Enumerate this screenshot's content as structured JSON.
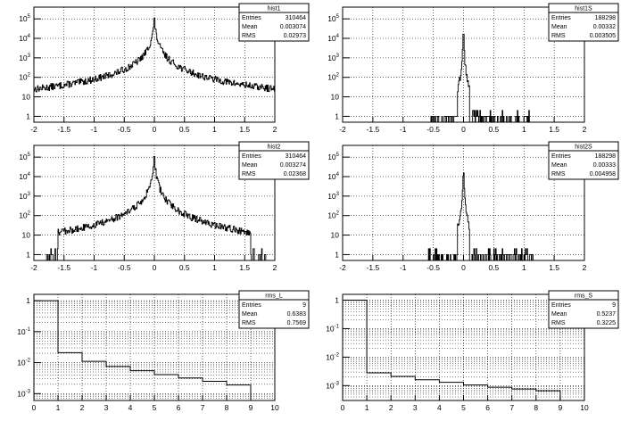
{
  "chart_data": [
    {
      "type": "histogram",
      "title": "hist1",
      "stats": [
        {
          "label": "Entries",
          "value": "310464"
        },
        {
          "label": "Mean",
          "value": "0.003074"
        },
        {
          "label": "RMS",
          "value": "0.02973"
        }
      ],
      "xlim": [
        -2,
        2
      ],
      "x_ticks": [
        "-2",
        "-1.5",
        "-1",
        "-0.5",
        "0",
        "0.5",
        "1",
        "1.5",
        "2"
      ],
      "y_scale": "log",
      "y_decades": [
        {
          "base": "1",
          "exp": ""
        },
        {
          "base": "10",
          "exp": ""
        },
        {
          "base": "10",
          "exp": "2"
        },
        {
          "base": "10",
          "exp": "3"
        },
        {
          "base": "10",
          "exp": "4"
        },
        {
          "base": "10",
          "exp": "5"
        }
      ],
      "ylim": [
        0.5,
        400000
      ],
      "grid": true,
      "shape": {
        "peak": 150000,
        "halfwidth": 0.012,
        "tail_index": 1.7,
        "noise_span": 2.0
      },
      "sparse_range": [
        -1.85,
        1.85
      ]
    },
    {
      "type": "histogram",
      "title": "hist1S",
      "stats": [
        {
          "label": "Entries",
          "value": "188298"
        },
        {
          "label": "Mean",
          "value": "0.00332"
        },
        {
          "label": "RMS",
          "value": "0.003505"
        }
      ],
      "xlim": [
        -2,
        2
      ],
      "x_ticks": [
        "-2",
        "-1.5",
        "-1",
        "-0.5",
        "0",
        "0.5",
        "1",
        "1.5",
        "2"
      ],
      "y_scale": "log",
      "y_decades": [
        {
          "base": "1",
          "exp": ""
        },
        {
          "base": "10",
          "exp": ""
        },
        {
          "base": "10",
          "exp": "2"
        },
        {
          "base": "10",
          "exp": "3"
        },
        {
          "base": "10",
          "exp": "4"
        },
        {
          "base": "10",
          "exp": "5"
        }
      ],
      "ylim": [
        0.5,
        400000
      ],
      "grid": true,
      "shape": {
        "peak": 110000,
        "halfwidth": 0.004,
        "tail_index": 2.6,
        "noise_span": 0.1
      },
      "sparse_range": [
        -0.55,
        1.1
      ]
    },
    {
      "type": "histogram",
      "title": "hist2",
      "stats": [
        {
          "label": "Entries",
          "value": "310464"
        },
        {
          "label": "Mean",
          "value": "0.003274"
        },
        {
          "label": "RMS",
          "value": "0.02368"
        }
      ],
      "xlim": [
        -2,
        2
      ],
      "x_ticks": [
        "-2",
        "-1.5",
        "-1",
        "-0.5",
        "0",
        "0.5",
        "1",
        "1.5",
        "2"
      ],
      "y_scale": "log",
      "y_decades": [
        {
          "base": "1",
          "exp": ""
        },
        {
          "base": "10",
          "exp": ""
        },
        {
          "base": "10",
          "exp": "2"
        },
        {
          "base": "10",
          "exp": "3"
        },
        {
          "base": "10",
          "exp": "4"
        },
        {
          "base": "10",
          "exp": "5"
        }
      ],
      "ylim": [
        0.5,
        400000
      ],
      "grid": true,
      "shape": {
        "peak": 150000,
        "halfwidth": 0.012,
        "tail_index": 1.9,
        "noise_span": 1.6
      },
      "sparse_range": [
        -1.85,
        1.85
      ]
    },
    {
      "type": "histogram",
      "title": "hist2S",
      "stats": [
        {
          "label": "Entries",
          "value": "188298"
        },
        {
          "label": "Mean",
          "value": "0.00333"
        },
        {
          "label": "RMS",
          "value": "0.004958"
        }
      ],
      "xlim": [
        -2,
        2
      ],
      "x_ticks": [
        "-2",
        "-1.5",
        "-1",
        "-0.5",
        "0",
        "0.5",
        "1",
        "1.5",
        "2"
      ],
      "y_scale": "log",
      "y_decades": [
        {
          "base": "1",
          "exp": ""
        },
        {
          "base": "10",
          "exp": ""
        },
        {
          "base": "10",
          "exp": "2"
        },
        {
          "base": "10",
          "exp": "3"
        },
        {
          "base": "10",
          "exp": "4"
        },
        {
          "base": "10",
          "exp": "5"
        }
      ],
      "ylim": [
        0.5,
        400000
      ],
      "grid": true,
      "shape": {
        "peak": 110000,
        "halfwidth": 0.004,
        "tail_index": 2.6,
        "noise_span": 0.1
      },
      "sparse_range": [
        -0.6,
        1.2
      ]
    },
    {
      "type": "histogram",
      "title": "rms_L",
      "stats": [
        {
          "label": "Entries",
          "value": "9"
        },
        {
          "label": "Mean",
          "value": "0.6383"
        },
        {
          "label": "RMS",
          "value": "0.7569"
        }
      ],
      "xlim": [
        0,
        10
      ],
      "x_ticks": [
        "0",
        "1",
        "2",
        "3",
        "4",
        "5",
        "6",
        "7",
        "8",
        "9",
        "10"
      ],
      "y_scale": "log",
      "y_decades": [
        {
          "base": "10",
          "exp": "-3"
        },
        {
          "base": "10",
          "exp": "-2"
        },
        {
          "base": "10",
          "exp": "-1"
        },
        {
          "base": "1",
          "exp": ""
        }
      ],
      "ylim": [
        0.0006,
        1.6
      ],
      "grid": true,
      "bins": [
        {
          "x0": 0,
          "x1": 1,
          "y": 1
        },
        {
          "x0": 1,
          "x1": 2,
          "y": 0.021
        },
        {
          "x0": 2,
          "x1": 3,
          "y": 0.011
        },
        {
          "x0": 3,
          "x1": 4,
          "y": 0.0075
        },
        {
          "x0": 4,
          "x1": 5,
          "y": 0.0055
        },
        {
          "x0": 5,
          "x1": 6,
          "y": 0.0041
        },
        {
          "x0": 6,
          "x1": 7,
          "y": 0.0032
        },
        {
          "x0": 7,
          "x1": 8,
          "y": 0.0025
        },
        {
          "x0": 8,
          "x1": 9,
          "y": 0.0019
        }
      ]
    },
    {
      "type": "histogram",
      "title": "rms_S",
      "stats": [
        {
          "label": "Entries",
          "value": "9"
        },
        {
          "label": "Mean",
          "value": "0.5237"
        },
        {
          "label": "RMS",
          "value": "0.3225"
        }
      ],
      "xlim": [
        0,
        10
      ],
      "x_ticks": [
        "0",
        "1",
        "2",
        "3",
        "4",
        "5",
        "6",
        "7",
        "8",
        "9",
        "10"
      ],
      "y_scale": "log",
      "y_decades": [
        {
          "base": "10",
          "exp": "-3"
        },
        {
          "base": "10",
          "exp": "-2"
        },
        {
          "base": "10",
          "exp": "-1"
        },
        {
          "base": "1",
          "exp": ""
        }
      ],
      "ylim": [
        0.0003,
        1.6
      ],
      "grid": true,
      "bins": [
        {
          "x0": 0,
          "x1": 1,
          "y": 1
        },
        {
          "x0": 1,
          "x1": 2,
          "y": 0.0028
        },
        {
          "x0": 2,
          "x1": 3,
          "y": 0.0021
        },
        {
          "x0": 3,
          "x1": 4,
          "y": 0.0016
        },
        {
          "x0": 4,
          "x1": 5,
          "y": 0.0013
        },
        {
          "x0": 5,
          "x1": 6,
          "y": 0.00105
        },
        {
          "x0": 6,
          "x1": 7,
          "y": 0.00088
        },
        {
          "x0": 7,
          "x1": 8,
          "y": 0.00076
        },
        {
          "x0": 8,
          "x1": 9,
          "y": 0.00066
        }
      ]
    }
  ]
}
